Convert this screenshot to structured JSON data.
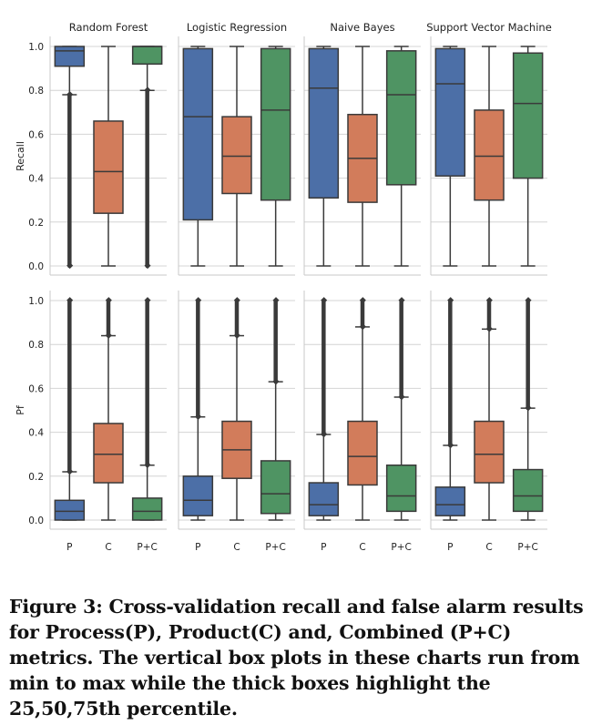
{
  "caption": "Figure 3: Cross-validation recall and false alarm results for Process(P), Product(C) and, Combined (P+C) metrics. The vertical box plots in these charts run from min to max while the thick boxes highlight the 25,50,75th percentile.",
  "colors": {
    "P": "#4c6fa7",
    "C": "#d27c5b",
    "P+C": "#4f9463",
    "edge": "#3a3a3a",
    "grid": "#d4d4d4"
  },
  "chart_data": {
    "type": "boxplot",
    "categories": [
      "P",
      "C",
      "P+C"
    ],
    "row_labels": [
      "Recall",
      "Pf"
    ],
    "col_titles": [
      "Random Forest",
      "Logistic Regression",
      "Naive Bayes",
      "Support Vector Machine"
    ],
    "ylim": [
      0,
      1
    ],
    "yticks": [
      "0.0",
      "0.2",
      "0.4",
      "0.6",
      "0.8",
      "1.0"
    ],
    "rows": [
      {
        "metric": "Recall",
        "models": [
          {
            "name": "Random Forest",
            "boxes": [
              {
                "min": 0.0,
                "q1": 0.91,
                "median": 0.98,
                "q3": 1.0,
                "max": 1.0,
                "whisker_low": 0.78,
                "outliers": [
                  0.0,
                  0.78
                ]
              },
              {
                "min": 0.0,
                "q1": 0.24,
                "median": 0.43,
                "q3": 0.66,
                "max": 1.0,
                "whisker_low": 0.0
              },
              {
                "min": 0.0,
                "q1": 0.92,
                "median": 1.0,
                "q3": 1.0,
                "max": 1.0,
                "whisker_low": 0.8,
                "outliers": [
                  0.0,
                  0.8
                ]
              }
            ]
          },
          {
            "name": "Logistic Regression",
            "boxes": [
              {
                "min": 0.0,
                "q1": 0.21,
                "median": 0.68,
                "q3": 0.99,
                "max": 1.0
              },
              {
                "min": 0.0,
                "q1": 0.33,
                "median": 0.5,
                "q3": 0.68,
                "max": 1.0
              },
              {
                "min": 0.0,
                "q1": 0.3,
                "median": 0.71,
                "q3": 0.99,
                "max": 1.0
              }
            ]
          },
          {
            "name": "Naive Bayes",
            "boxes": [
              {
                "min": 0.0,
                "q1": 0.31,
                "median": 0.81,
                "q3": 0.99,
                "max": 1.0
              },
              {
                "min": 0.0,
                "q1": 0.29,
                "median": 0.49,
                "q3": 0.69,
                "max": 1.0
              },
              {
                "min": 0.0,
                "q1": 0.37,
                "median": 0.78,
                "q3": 0.98,
                "max": 1.0
              }
            ]
          },
          {
            "name": "Support Vector Machine",
            "boxes": [
              {
                "min": 0.0,
                "q1": 0.41,
                "median": 0.83,
                "q3": 0.99,
                "max": 1.0
              },
              {
                "min": 0.0,
                "q1": 0.3,
                "median": 0.5,
                "q3": 0.71,
                "max": 1.0
              },
              {
                "min": 0.0,
                "q1": 0.4,
                "median": 0.74,
                "q3": 0.97,
                "max": 1.0
              }
            ]
          }
        ]
      },
      {
        "metric": "Pf",
        "models": [
          {
            "name": "Random Forest",
            "boxes": [
              {
                "min": 0.0,
                "q1": 0.0,
                "median": 0.04,
                "q3": 0.09,
                "max": 0.22,
                "outliers": [
                  0.22,
                  1.0
                ]
              },
              {
                "min": 0.0,
                "q1": 0.17,
                "median": 0.3,
                "q3": 0.44,
                "max": 0.84,
                "outliers": [
                  0.84,
                  1.0
                ]
              },
              {
                "min": 0.0,
                "q1": 0.0,
                "median": 0.04,
                "q3": 0.1,
                "max": 0.25,
                "outliers": [
                  0.25,
                  1.0
                ]
              }
            ]
          },
          {
            "name": "Logistic Regression",
            "boxes": [
              {
                "min": 0.0,
                "q1": 0.02,
                "median": 0.09,
                "q3": 0.2,
                "max": 0.47,
                "outliers": [
                  0.47,
                  1.0
                ]
              },
              {
                "min": 0.0,
                "q1": 0.19,
                "median": 0.32,
                "q3": 0.45,
                "max": 0.84,
                "outliers": [
                  0.84,
                  1.0
                ]
              },
              {
                "min": 0.0,
                "q1": 0.03,
                "median": 0.12,
                "q3": 0.27,
                "max": 0.63,
                "outliers": [
                  0.63,
                  1.0
                ]
              }
            ]
          },
          {
            "name": "Naive Bayes",
            "boxes": [
              {
                "min": 0.0,
                "q1": 0.02,
                "median": 0.07,
                "q3": 0.17,
                "max": 0.39,
                "outliers": [
                  0.39,
                  1.0
                ]
              },
              {
                "min": 0.0,
                "q1": 0.16,
                "median": 0.29,
                "q3": 0.45,
                "max": 0.88,
                "outliers": [
                  0.88,
                  1.0
                ]
              },
              {
                "min": 0.0,
                "q1": 0.04,
                "median": 0.11,
                "q3": 0.25,
                "max": 0.56,
                "outliers": [
                  0.56,
                  1.0
                ]
              }
            ]
          },
          {
            "name": "Support Vector Machine",
            "boxes": [
              {
                "min": 0.0,
                "q1": 0.02,
                "median": 0.07,
                "q3": 0.15,
                "max": 0.34,
                "outliers": [
                  0.34,
                  1.0
                ]
              },
              {
                "min": 0.0,
                "q1": 0.17,
                "median": 0.3,
                "q3": 0.45,
                "max": 0.87,
                "outliers": [
                  0.87,
                  1.0
                ]
              },
              {
                "min": 0.0,
                "q1": 0.04,
                "median": 0.11,
                "q3": 0.23,
                "max": 0.51,
                "outliers": [
                  0.51,
                  1.0
                ]
              }
            ]
          }
        ]
      }
    ]
  }
}
